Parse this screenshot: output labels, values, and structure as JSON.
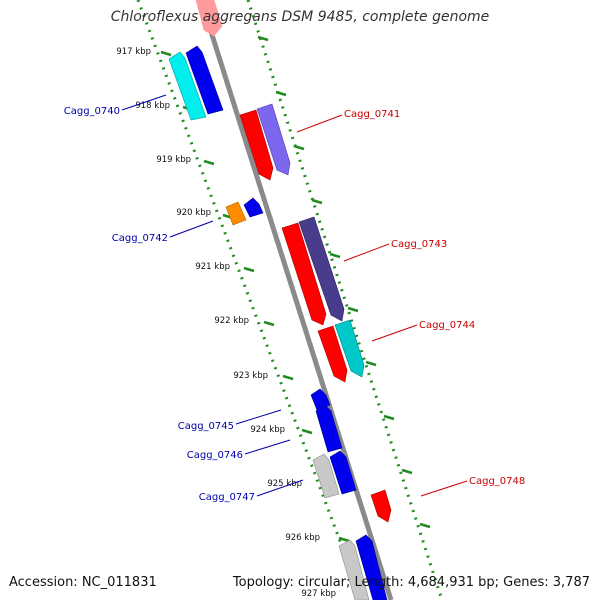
{
  "title": "Chloroflexus aggregans DSM 9485, complete genome",
  "footer": {
    "accession": "Accession: NC_011831",
    "summary": "Topology: circular; Length: 4,684,931 bp; Genes: 3,787"
  },
  "colors": {
    "backbone": "#888888",
    "tick_dots": "#228B22",
    "forward_label": "#cc0000",
    "reverse_label": "#0000aa"
  },
  "ticks": [
    "917 kbp",
    "918 kbp",
    "919 kbp",
    "920 kbp",
    "921 kbp",
    "922 kbp",
    "923 kbp",
    "924 kbp",
    "925 kbp",
    "926 kbp",
    "927 kbp"
  ],
  "gene_labels": [
    {
      "name": "Cagg_0740",
      "strand": "reverse"
    },
    {
      "name": "Cagg_0741",
      "strand": "forward"
    },
    {
      "name": "Cagg_0742",
      "strand": "reverse"
    },
    {
      "name": "Cagg_0743",
      "strand": "forward"
    },
    {
      "name": "Cagg_0744",
      "strand": "forward"
    },
    {
      "name": "Cagg_0745",
      "strand": "reverse"
    },
    {
      "name": "Cagg_0746",
      "strand": "reverse"
    },
    {
      "name": "Cagg_0747",
      "strand": "reverse"
    },
    {
      "name": "Cagg_0748",
      "strand": "forward"
    }
  ]
}
